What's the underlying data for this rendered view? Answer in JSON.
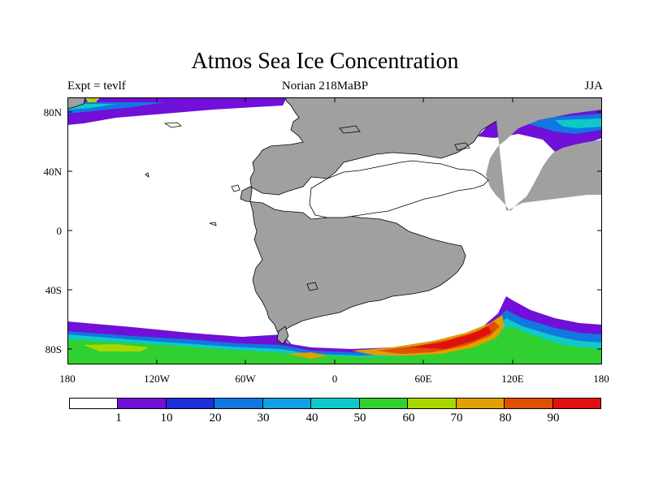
{
  "title": "Atmos Sea Ice Concentration",
  "left_label": "Expt = tevlf",
  "center_label": "Norian 218MaBP",
  "right_label": "JJA",
  "map": {
    "lat_labels": [
      "80N",
      "40N",
      "0",
      "40S",
      "80S"
    ],
    "lon_labels": [
      "180",
      "120W",
      "60W",
      "0",
      "60E",
      "120E",
      "180"
    ],
    "land_color": "#a0a0a0",
    "ocean_color": "#ffffff"
  },
  "colorbar": {
    "colors": [
      "#ffffff",
      "#7010d8",
      "#1c2fd8",
      "#1078e0",
      "#10a0e8",
      "#10c8c8",
      "#30d030",
      "#a8d800",
      "#e0a000",
      "#e05000",
      "#e01010"
    ],
    "labels": [
      "1",
      "10",
      "20",
      "30",
      "40",
      "50",
      "60",
      "70",
      "80",
      "90"
    ]
  }
}
